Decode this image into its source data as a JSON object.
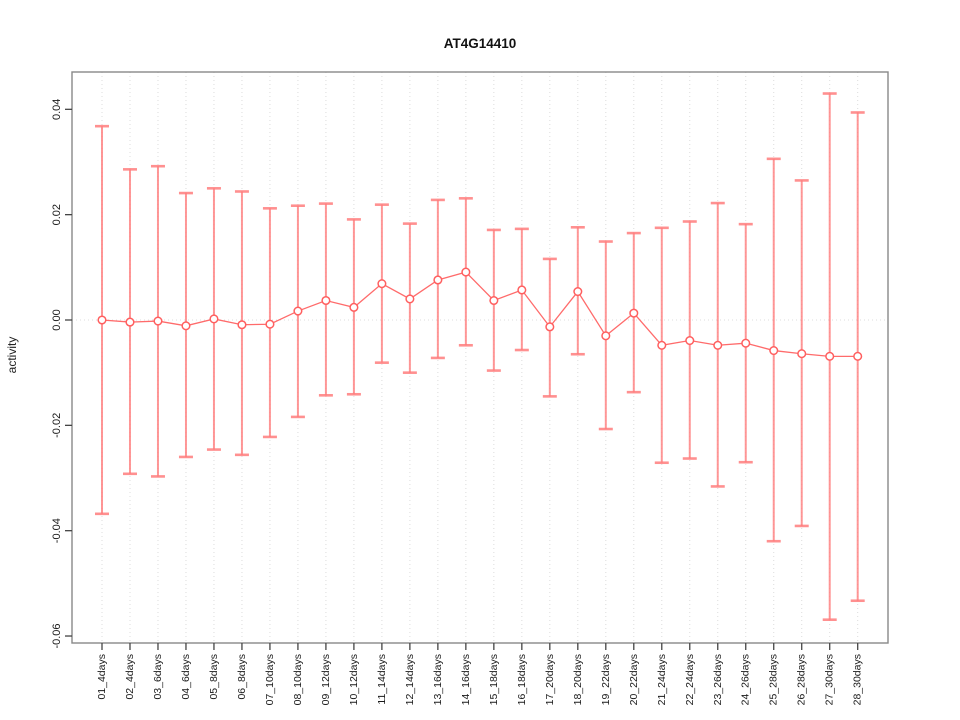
{
  "chart_data": {
    "type": "scatter",
    "subtype": "points-with-error-bars",
    "title": "AT4G14410",
    "xlabel": "",
    "ylabel": "activity",
    "ylim": [
      -0.061,
      0.047
    ],
    "yticks": [
      0.04,
      0.02,
      0.0,
      -0.02,
      -0.04,
      -0.06
    ],
    "ytick_labels": [
      "0.04",
      "0.02",
      "0.00",
      "-0.02",
      "-0.04",
      "-0.06"
    ],
    "grid": "vertical-dotted",
    "zero_line": true,
    "legend": "none",
    "categories": [
      "01_4days",
      "02_4days",
      "03_6days",
      "04_6days",
      "05_8days",
      "06_8days",
      "07_10days",
      "08_10days",
      "09_12days",
      "10_12days",
      "11_14days",
      "12_14days",
      "13_16days",
      "14_16days",
      "15_18days",
      "16_18days",
      "17_20days",
      "18_20days",
      "19_22days",
      "20_22days",
      "21_24days",
      "22_24days",
      "23_26days",
      "24_26days",
      "25_28days",
      "26_28days",
      "27_30days",
      "28_30days"
    ],
    "series": [
      {
        "name": "activity",
        "means": [
          0.0,
          -0.0004,
          -0.0002,
          -0.0011,
          0.0002,
          -0.0009,
          -0.0008,
          0.0017,
          0.0037,
          0.0024,
          0.0069,
          0.004,
          0.0076,
          0.0091,
          0.0037,
          0.0057,
          -0.0013,
          0.0054,
          -0.003,
          0.0013,
          -0.0048,
          -0.0039,
          -0.0048,
          -0.0044,
          -0.0058,
          -0.0064,
          -0.0069,
          -0.0069
        ],
        "upper": [
          0.0368,
          0.0286,
          0.0292,
          0.0241,
          0.025,
          0.0244,
          0.0212,
          0.0217,
          0.0221,
          0.0191,
          0.0219,
          0.0183,
          0.0228,
          0.0231,
          0.0171,
          0.0173,
          0.0116,
          0.0176,
          0.0149,
          0.0165,
          0.0175,
          0.0187,
          0.0222,
          0.0182,
          0.0306,
          0.0265,
          0.043,
          0.0394
        ],
        "lower": [
          -0.0368,
          -0.0292,
          -0.0297,
          -0.026,
          -0.0246,
          -0.0256,
          -0.0222,
          -0.0184,
          -0.0143,
          -0.0141,
          -0.0081,
          -0.01,
          -0.0072,
          -0.0048,
          -0.0096,
          -0.0057,
          -0.0145,
          -0.0065,
          -0.0207,
          -0.0137,
          -0.0271,
          -0.0263,
          -0.0316,
          -0.027,
          -0.042,
          -0.0391,
          -0.0569,
          -0.0533
        ]
      }
    ],
    "colors": {
      "point_stroke": "#ff5f5f",
      "point_fill": "#ffffff",
      "line": "#ff6b6b",
      "error_bar": "#ff7d7d",
      "grid_line": "#dcdcdc",
      "zero_line": "#dedede",
      "frame": "#888888",
      "tick": "#444444",
      "text": "#1a1a1a"
    }
  }
}
